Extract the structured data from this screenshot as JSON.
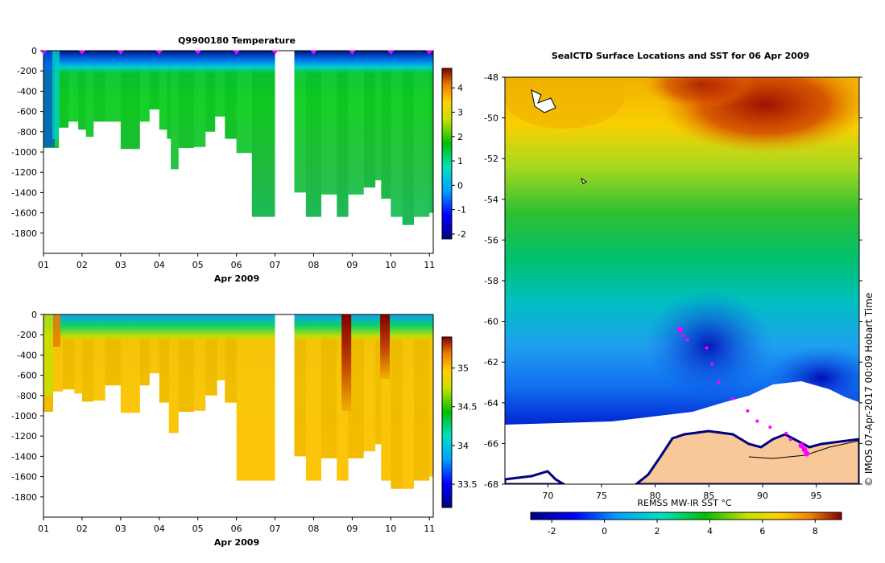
{
  "chart_data": [
    {
      "type": "heatmap",
      "id": "temperature_section",
      "title": "Q9900180  Temperature",
      "xlabel": "Apr 2009",
      "ylabel": "",
      "x_ticks": [
        "01",
        "02",
        "03",
        "04",
        "05",
        "06",
        "07",
        "08",
        "09",
        "10",
        "11"
      ],
      "xlim": [
        1,
        11.1
      ],
      "y_ticks": [
        0,
        -200,
        -400,
        -600,
        -800,
        -1000,
        -1200,
        -1400,
        -1600,
        -1800
      ],
      "ylim": [
        -2000,
        0
      ],
      "colorbar": {
        "ticks": [
          4,
          3,
          2,
          1,
          0,
          -1,
          -2
        ],
        "range": [
          -2.2,
          4.8
        ]
      },
      "data_gap": [
        7.0,
        7.5
      ],
      "profiles": [
        {
          "t": 1.0,
          "depth": 960
        },
        {
          "t": 1.25,
          "depth": 960
        },
        {
          "t": 1.4,
          "depth": 760
        },
        {
          "t": 1.65,
          "depth": 700
        },
        {
          "t": 1.9,
          "depth": 780
        },
        {
          "t": 2.1,
          "depth": 850
        },
        {
          "t": 2.3,
          "depth": 700
        },
        {
          "t": 2.6,
          "depth": 700
        },
        {
          "t": 3.0,
          "depth": 970
        },
        {
          "t": 3.5,
          "depth": 700
        },
        {
          "t": 3.75,
          "depth": 580
        },
        {
          "t": 4.0,
          "depth": 780
        },
        {
          "t": 4.2,
          "depth": 870
        },
        {
          "t": 4.3,
          "depth": 1170
        },
        {
          "t": 4.5,
          "depth": 960
        },
        {
          "t": 4.9,
          "depth": 950
        },
        {
          "t": 5.2,
          "depth": 800
        },
        {
          "t": 5.45,
          "depth": 650
        },
        {
          "t": 5.7,
          "depth": 870
        },
        {
          "t": 6.0,
          "depth": 1010
        },
        {
          "t": 6.4,
          "depth": 1640
        },
        {
          "t": 7.5,
          "depth": 1400
        },
        {
          "t": 7.8,
          "depth": 1640
        },
        {
          "t": 8.2,
          "depth": 1420
        },
        {
          "t": 8.6,
          "depth": 1640
        },
        {
          "t": 8.9,
          "depth": 1420
        },
        {
          "t": 9.3,
          "depth": 1350
        },
        {
          "t": 9.6,
          "depth": 1280
        },
        {
          "t": 9.75,
          "depth": 1460
        },
        {
          "t": 10.0,
          "depth": 1640
        },
        {
          "t": 10.3,
          "depth": 1720
        },
        {
          "t": 10.6,
          "depth": 1640
        },
        {
          "t": 11.0,
          "depth": 1600
        }
      ],
      "profile_markers": [
        "01",
        "02",
        "03",
        "04",
        "05",
        "06",
        "07",
        "08",
        "09",
        "10",
        "11"
      ]
    },
    {
      "type": "heatmap",
      "id": "salinity_section",
      "title": "",
      "xlabel": "Apr 2009",
      "ylabel": "",
      "x_ticks": [
        "01",
        "02",
        "03",
        "04",
        "05",
        "06",
        "07",
        "08",
        "09",
        "10",
        "11"
      ],
      "xlim": [
        1,
        11.1
      ],
      "y_ticks": [
        0,
        -200,
        -400,
        -600,
        -800,
        -1000,
        -1200,
        -1400,
        -1600,
        -1800
      ],
      "ylim": [
        -2000,
        0
      ],
      "colorbar": {
        "ticks": [
          35,
          34.5,
          34,
          33.5
        ],
        "range": [
          33.2,
          35.4
        ]
      },
      "data_gap": [
        7.0,
        7.5
      ],
      "profiles": [
        {
          "t": 1.0,
          "depth": 960
        },
        {
          "t": 1.25,
          "depth": 760
        },
        {
          "t": 1.5,
          "depth": 740
        },
        {
          "t": 1.8,
          "depth": 780
        },
        {
          "t": 2.0,
          "depth": 860
        },
        {
          "t": 2.3,
          "depth": 850
        },
        {
          "t": 2.6,
          "depth": 700
        },
        {
          "t": 3.0,
          "depth": 970
        },
        {
          "t": 3.5,
          "depth": 700
        },
        {
          "t": 3.75,
          "depth": 580
        },
        {
          "t": 4.0,
          "depth": 870
        },
        {
          "t": 4.25,
          "depth": 1170
        },
        {
          "t": 4.5,
          "depth": 960
        },
        {
          "t": 4.9,
          "depth": 950
        },
        {
          "t": 5.2,
          "depth": 800
        },
        {
          "t": 5.5,
          "depth": 650
        },
        {
          "t": 5.7,
          "depth": 870
        },
        {
          "t": 6.0,
          "depth": 1640
        },
        {
          "t": 7.5,
          "depth": 1400
        },
        {
          "t": 7.8,
          "depth": 1640
        },
        {
          "t": 8.2,
          "depth": 1420
        },
        {
          "t": 8.6,
          "depth": 1640
        },
        {
          "t": 8.9,
          "depth": 1420
        },
        {
          "t": 9.3,
          "depth": 1350
        },
        {
          "t": 9.6,
          "depth": 1280
        },
        {
          "t": 9.75,
          "depth": 1640
        },
        {
          "t": 10.0,
          "depth": 1720
        },
        {
          "t": 10.3,
          "depth": 1720
        },
        {
          "t": 10.6,
          "depth": 1640
        },
        {
          "t": 11.0,
          "depth": 1600
        }
      ],
      "high_salinity_profiles": [
        8.85,
        9.85
      ]
    },
    {
      "type": "heatmap",
      "id": "sst_map",
      "title": "SealCTD Surface Locations and SST for 06 Apr 2009",
      "xlabel": "",
      "ylabel": "",
      "x_ticks": [
        70,
        75,
        80,
        85,
        90,
        95
      ],
      "xlim": [
        66,
        99
      ],
      "y_ticks": [
        -48,
        -50,
        -52,
        -54,
        -56,
        -58,
        -60,
        -62,
        -64,
        -66,
        -68
      ],
      "ylim": [
        -68,
        -48
      ],
      "colorbar": {
        "label": "REMSS MW-IR SST °C",
        "ticks": [
          -2,
          0,
          2,
          4,
          6,
          8
        ],
        "range": [
          -2.8,
          9.0
        ]
      },
      "side_note": "© IMOS 07-Apr-2017 00:09 Hobart Time",
      "seal_track": [
        {
          "lon": 82.3,
          "lat": -60.4
        },
        {
          "lon": 82.6,
          "lat": -60.7
        },
        {
          "lon": 83.0,
          "lat": -60.9
        },
        {
          "lon": 84.8,
          "lat": -61.3
        },
        {
          "lon": 85.3,
          "lat": -62.1
        },
        {
          "lon": 85.9,
          "lat": -63.0
        },
        {
          "lon": 87.2,
          "lat": -63.8
        },
        {
          "lon": 88.6,
          "lat": -64.4
        },
        {
          "lon": 89.5,
          "lat": -64.9
        },
        {
          "lon": 90.7,
          "lat": -65.2
        },
        {
          "lon": 92.2,
          "lat": -65.5
        },
        {
          "lon": 92.6,
          "lat": -65.8
        },
        {
          "lon": 93.6,
          "lat": -66.1
        },
        {
          "lon": 93.9,
          "lat": -66.3
        },
        {
          "lon": 94.1,
          "lat": -66.5
        }
      ]
    }
  ]
}
